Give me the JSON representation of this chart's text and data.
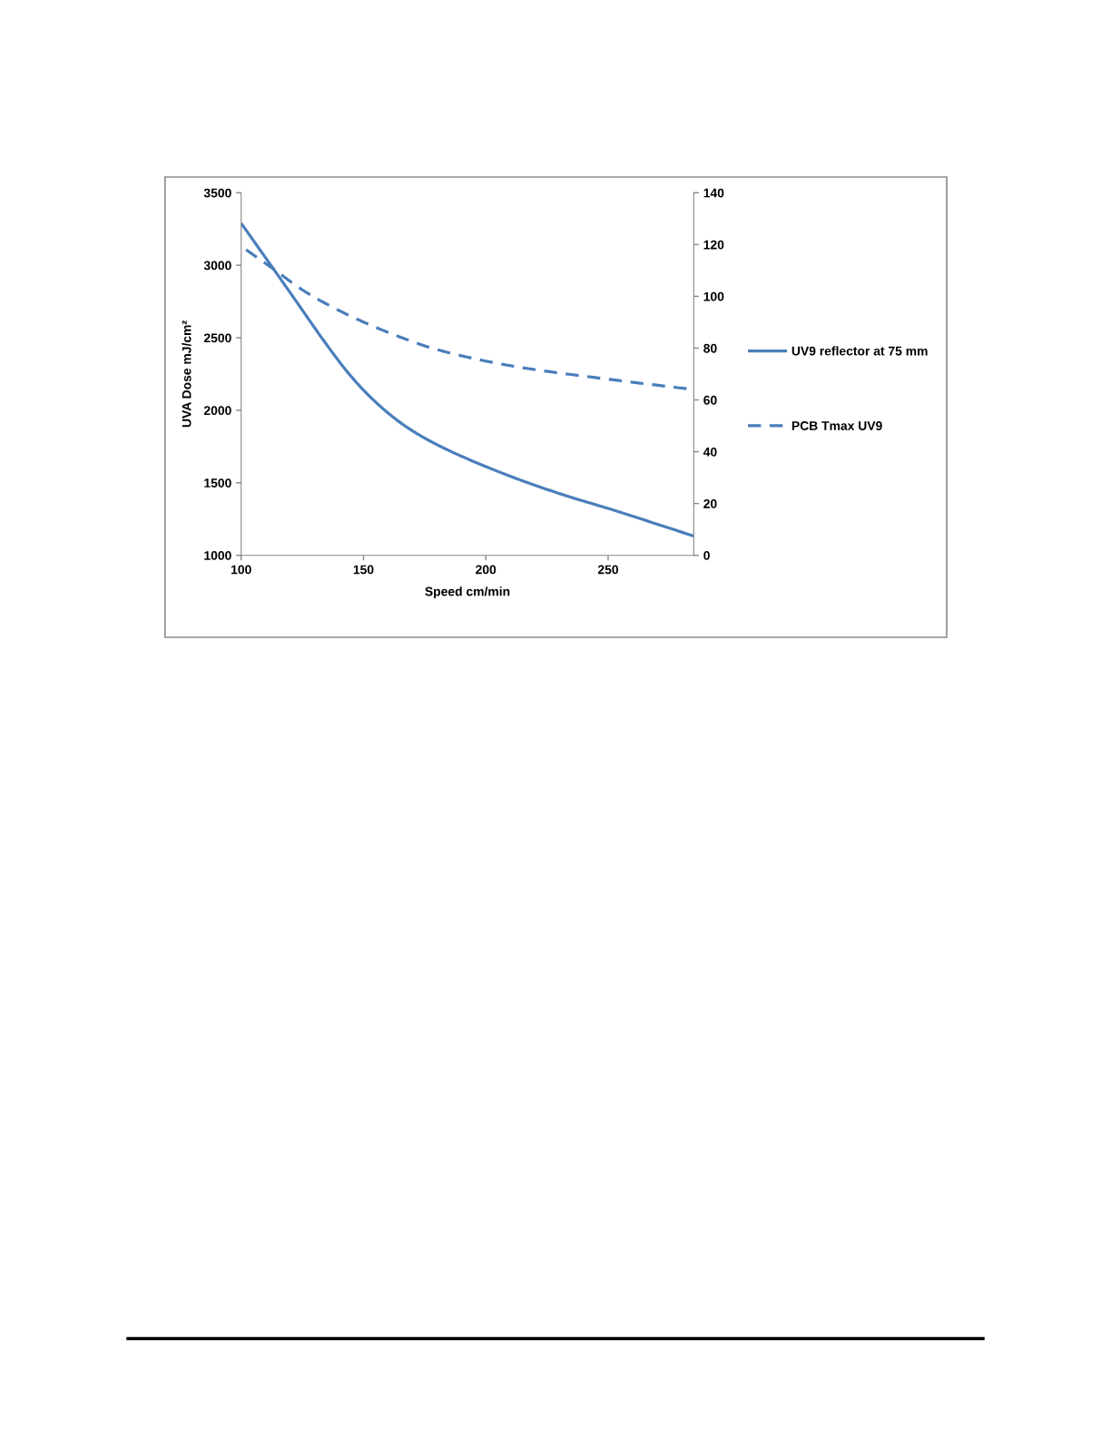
{
  "chart_data": {
    "type": "line",
    "xlabel": "Speed cm/min",
    "ylabel": "UVA Dose mJ/cm²",
    "xlim": [
      100,
      285
    ],
    "xticks": [
      100,
      150,
      200,
      250
    ],
    "ylim": [
      1000,
      3500
    ],
    "yticks": [
      1000,
      1500,
      2000,
      2500,
      3000,
      3500
    ],
    "y2lim": [
      0,
      140
    ],
    "y2ticks": [
      0,
      20,
      40,
      60,
      80,
      100,
      120,
      140
    ],
    "legend": "right",
    "grid": false,
    "marker": "none",
    "series": [
      {
        "name": "UV9 reflector at 75 mm",
        "color": "#4a7ebb",
        "line_style": "solid",
        "x": [
          100,
          118,
          137,
          143,
          149,
          155,
          161,
          167,
          174,
          184,
          200,
          214,
          233,
          250,
          285
        ],
        "values": [
          3290,
          2860,
          2405,
          2273,
          2157,
          2056,
          1968,
          1892,
          1818,
          1730,
          1612,
          1520,
          1410,
          1323,
          1133
        ]
      },
      {
        "name": "PCB Tmax UV9",
        "color": "#4a7ebb",
        "line_style": "dashed",
        "axis": "y2",
        "x": [
          102,
          114,
          125,
          137,
          149,
          163,
          178,
          200,
          218,
          250,
          285
        ],
        "values": [
          118,
          110,
          102.5,
          96,
          90.5,
          85,
          80,
          75,
          72,
          68,
          64
        ]
      }
    ]
  }
}
